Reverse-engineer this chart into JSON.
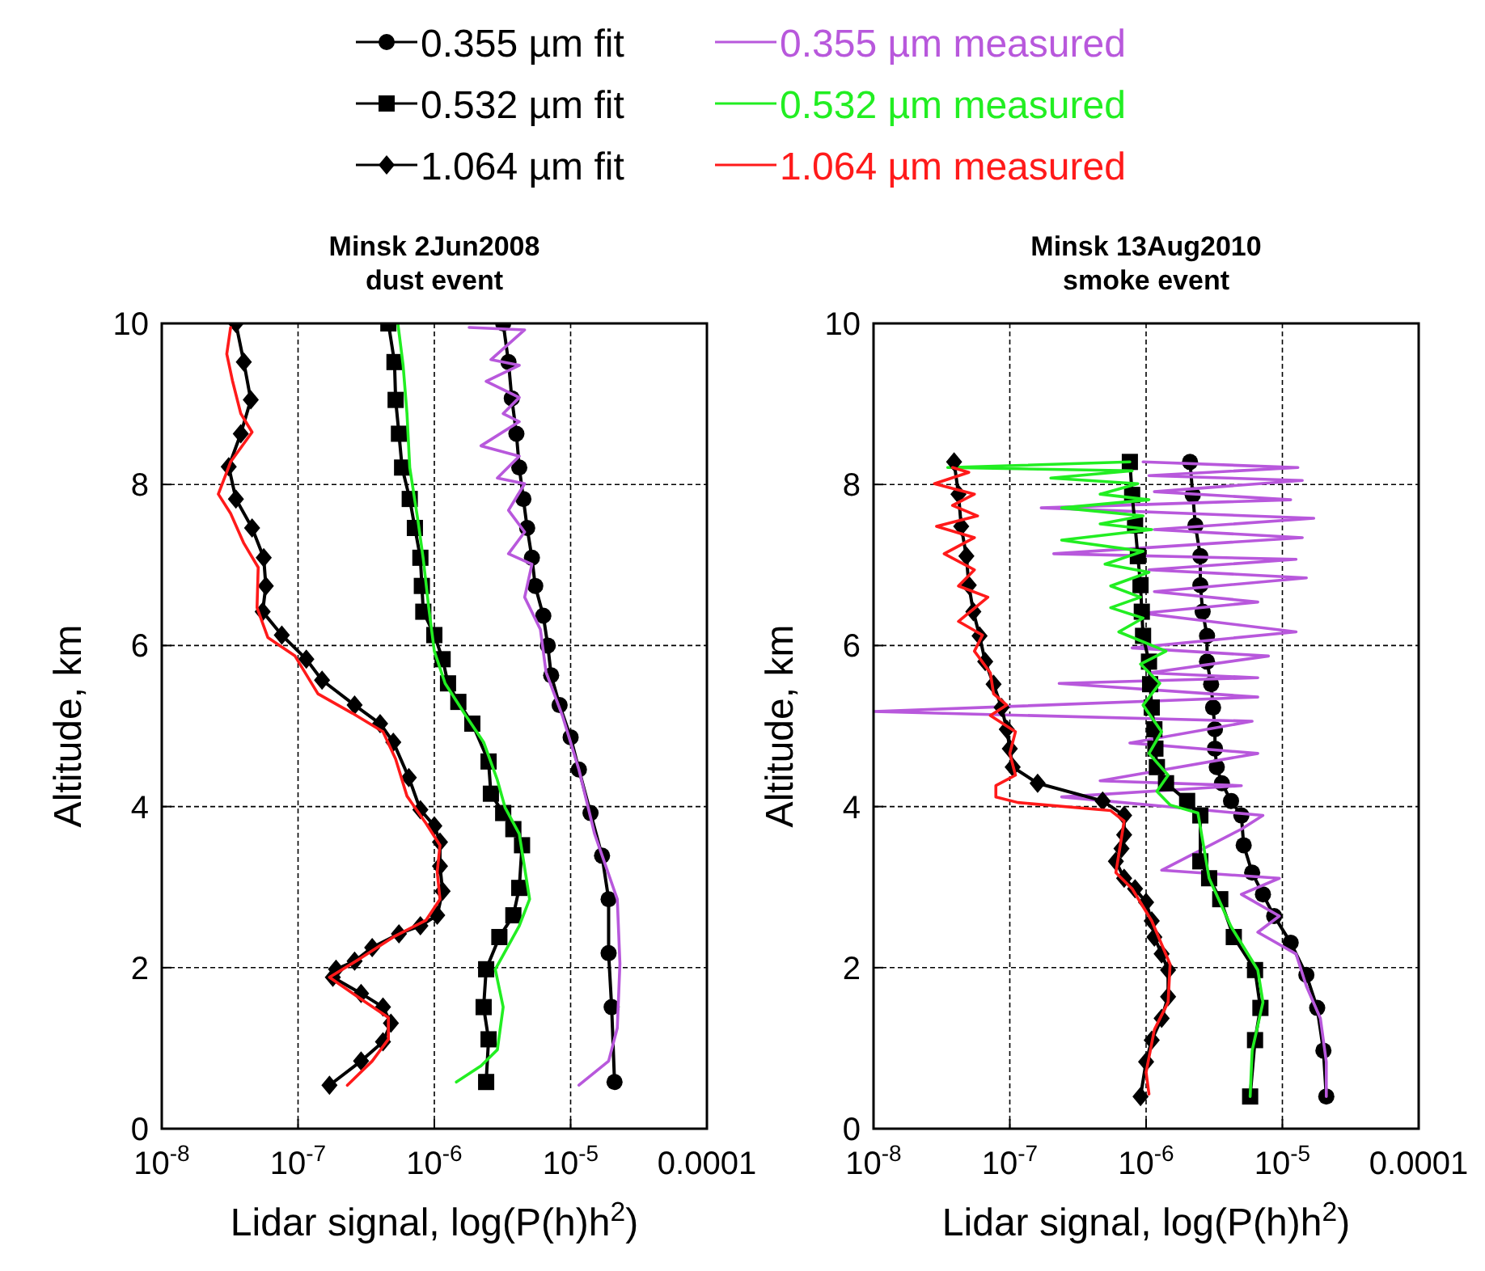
{
  "chart_data": [
    {
      "type": "line",
      "title": "Minsk 2Jun2008",
      "subtitle": "dust event",
      "xlabel": "Lidar signal, log(P(h)h$^{2}$)",
      "ylabel": "Altitude, km",
      "log": "x",
      "grid": true,
      "legend": "top",
      "line_style": "solid",
      "xlim": [
        1e-08,
        0.0001
      ],
      "xticks": [
        {
          "value": 1e-08,
          "label": "10$^{-8}$"
        },
        {
          "value": 1e-07,
          "label": "10$^{-7}$"
        },
        {
          "value": 1e-06,
          "label": "10$^{-6}$"
        },
        {
          "value": 1e-05,
          "label": "10$^{-5}$"
        },
        0.0001
      ],
      "ylim": [
        0,
        10
      ],
      "yticks": [
        0,
        2,
        4,
        6,
        8,
        10
      ],
      "series": [
        {
          "name": "0.355 µm fit",
          "color": "#000000",
          "marker": "circle",
          "x": [
            3.2e-06,
            3.5e-06,
            3.7e-06,
            4e-06,
            4.2e-06,
            4.5e-06,
            4.8e-06,
            5.2e-06,
            5.5e-06,
            6.3e-06,
            6.8e-06,
            7.2e-06,
            8.3e-06,
            1e-05,
            1.15e-05,
            1.4e-05,
            1.7e-05,
            1.9e-05,
            1.9e-05,
            2e-05,
            2.1e-05
          ],
          "values": [
            10,
            9.52,
            9.07,
            8.63,
            8.21,
            7.82,
            7.46,
            7.09,
            6.74,
            6.37,
            6.0,
            5.63,
            5.26,
            4.86,
            4.46,
            3.92,
            3.39,
            2.85,
            2.18,
            1.51,
            0.58
          ]
        },
        {
          "name": "0.355 µm measured",
          "color": "#b858dc",
          "marker": "none",
          "x": [
            1.8e-06,
            4.6e-06,
            2.6e-06,
            4.2e-06,
            2.4e-06,
            4.2e-06,
            3.2e-06,
            4.2e-06,
            2.2e-06,
            4.2e-06,
            2.9e-06,
            4.6e-06,
            3.5e-06,
            4.6e-06,
            3.5e-06,
            5.2e-06,
            4.6e-06,
            6e-06,
            6.6e-06,
            8.7e-06,
            1.15e-05,
            1.5e-05,
            2.2e-05,
            2.3e-05,
            2.2e-05,
            1.9e-05,
            1.15e-05
          ],
          "values": [
            9.95,
            9.92,
            9.55,
            9.48,
            9.28,
            9.08,
            8.88,
            8.78,
            8.48,
            8.35,
            8.08,
            8.01,
            7.68,
            7.41,
            7.14,
            7.01,
            6.6,
            6.2,
            5.67,
            5.13,
            4.46,
            3.66,
            2.85,
            2.05,
            1.25,
            0.84,
            0.54
          ]
        },
        {
          "name": "0.532 µm fit",
          "color": "#000000",
          "marker": "square",
          "x": [
            4.6e-07,
            5.1e-07,
            5.2e-07,
            5.5e-07,
            5.8e-07,
            6.6e-07,
            7.2e-07,
            7.9e-07,
            8.1e-07,
            8.3e-07,
            1e-06,
            1.15e-06,
            1.26e-06,
            1.5e-06,
            1.9e-06,
            2.5e-06,
            2.6e-06,
            3.2e-06,
            3.8e-06,
            4.4e-06,
            4.2e-06,
            3.8e-06,
            3e-06,
            2.4e-06,
            2.3e-06,
            2.5e-06,
            2.4e-06
          ],
          "values": [
            10,
            9.52,
            9.05,
            8.63,
            8.21,
            7.82,
            7.46,
            7.09,
            6.74,
            6.42,
            6.13,
            5.83,
            5.53,
            5.3,
            5.03,
            4.56,
            4.16,
            3.92,
            3.72,
            3.52,
            2.99,
            2.65,
            2.38,
            1.98,
            1.51,
            1.11,
            0.58
          ]
        },
        {
          "name": "0.532 µm measured",
          "color": "#22ee22",
          "marker": "none",
          "x": [
            5.4e-07,
            5.9e-07,
            6.3e-07,
            6.6e-07,
            7.6e-07,
            8.3e-07,
            9.1e-07,
            1e-06,
            1.2e-06,
            1.7e-06,
            2.3e-06,
            2.9e-06,
            3.3e-06,
            4.2e-06,
            5e-06,
            4.2e-06,
            2.8e-06,
            3.2e-06,
            2.9e-06,
            2.2e-06,
            1.45e-06
          ],
          "values": [
            10,
            9.48,
            8.88,
            8.21,
            7.54,
            7.07,
            6.47,
            5.93,
            5.53,
            5.13,
            4.8,
            4.33,
            3.99,
            3.66,
            2.85,
            2.52,
            1.98,
            1.51,
            0.98,
            0.78,
            0.58
          ]
        },
        {
          "name": "1.064 µm fit",
          "color": "#000000",
          "marker": "diamond",
          "x": [
            3.5e-08,
            4e-08,
            4.5e-08,
            3.8e-08,
            3.1e-08,
            3.5e-08,
            4.6e-08,
            5.6e-08,
            5.8e-08,
            5.5e-08,
            7.6e-08,
            1.15e-07,
            1.5e-07,
            2.6e-07,
            4e-07,
            5e-07,
            6.5e-07,
            7.9e-07,
            1e-06,
            1.1e-06,
            1.1e-06,
            1.15e-06,
            1.05e-06,
            7.9e-07,
            5.5e-07,
            3.5e-07,
            2.6e-07,
            1.9e-07,
            1.8e-07,
            2.9e-07,
            4.2e-07,
            4.8e-07,
            4.2e-07,
            2.9e-07,
            1.7e-07
          ],
          "values": [
            10,
            9.52,
            9.05,
            8.63,
            8.22,
            7.82,
            7.46,
            7.09,
            6.74,
            6.42,
            6.13,
            5.83,
            5.57,
            5.26,
            5.03,
            4.8,
            4.36,
            3.96,
            3.76,
            3.56,
            3.26,
            2.95,
            2.65,
            2.52,
            2.42,
            2.25,
            2.08,
            1.98,
            1.88,
            1.68,
            1.51,
            1.31,
            1.08,
            0.84,
            0.54
          ]
        },
        {
          "name": "1.064 µm measured",
          "color": "#ff1a1a",
          "marker": "none",
          "x": [
            3.2e-08,
            3e-08,
            3.3e-08,
            3.8e-08,
            4.6e-08,
            3.2e-08,
            2.6e-08,
            3.2e-08,
            4e-08,
            5.1e-08,
            5e-08,
            6e-08,
            9.5e-08,
            1.4e-07,
            2.5e-07,
            4.2e-07,
            5.2e-07,
            6.3e-07,
            8.7e-07,
            1.1e-06,
            1.05e-06,
            1.1e-06,
            8.7e-07,
            5e-07,
            2.9e-07,
            1.7e-07,
            2.9e-07,
            4.6e-07,
            4.6e-07,
            3.5e-07,
            2.3e-07
          ],
          "values": [
            9.95,
            9.62,
            9.29,
            8.88,
            8.65,
            8.28,
            7.88,
            7.64,
            7.27,
            6.97,
            6.47,
            6.1,
            5.87,
            5.4,
            5.16,
            4.93,
            4.59,
            4.13,
            3.79,
            3.52,
            3.19,
            2.85,
            2.59,
            2.38,
            2.12,
            1.88,
            1.61,
            1.38,
            1.11,
            0.84,
            0.54
          ]
        }
      ]
    },
    {
      "type": "line",
      "title": "Minsk 13Aug2010",
      "subtitle": "smoke event",
      "xlabel": "Lidar signal, log(P(h)h$^{2}$)",
      "ylabel": "Altitude, km",
      "log": "x",
      "grid": true,
      "line_style": "solid",
      "xlim": [
        1e-08,
        0.0001
      ],
      "xticks": [
        {
          "value": 1e-08,
          "label": "10$^{-8}$"
        },
        {
          "value": 1e-07,
          "label": "10$^{-7}$"
        },
        {
          "value": 1e-06,
          "label": "10$^{-6}$"
        },
        {
          "value": 1e-05,
          "label": "10$^{-5}$"
        },
        0.0001
      ],
      "ylim": [
        0,
        10
      ],
      "yticks": [
        0,
        2,
        4,
        6,
        8,
        10
      ],
      "series": [
        {
          "color": "#000000",
          "marker": "circle",
          "x": [
            2.1e-06,
            2.2e-06,
            2.3e-06,
            2.5e-06,
            2.5e-06,
            2.6e-06,
            2.8e-06,
            2.8e-06,
            3e-06,
            3.1e-06,
            3.2e-06,
            3.2e-06,
            3.3e-06,
            3.6e-06,
            4.2e-06,
            5e-06,
            5.2e-06,
            6e-06,
            7.2e-06,
            8.7e-06,
            1.15e-05,
            1.5e-05,
            1.8e-05,
            2e-05,
            2.1e-05
          ],
          "values": [
            8.28,
            7.87,
            7.49,
            7.11,
            6.75,
            6.42,
            6.12,
            5.8,
            5.52,
            5.23,
            4.96,
            4.72,
            4.49,
            4.29,
            4.07,
            3.89,
            3.52,
            3.18,
            2.91,
            2.64,
            2.31,
            1.91,
            1.5,
            0.97,
            0.4
          ]
        },
        {
          "color": "#b858dc",
          "marker": "none",
          "x": [
            9.5e-07,
            1.3e-05,
            1.05e-06,
            1.4e-05,
            1.15e-06,
            1.15e-05,
            1.7e-07,
            1.7e-05,
            1.15e-06,
            1.4e-05,
            2.1e-07,
            1.26e-05,
            1.05e-06,
            1.5e-05,
            1.15e-06,
            6.6e-06,
            9.5e-07,
            1.26e-05,
            7.9e-07,
            7.9e-06,
            1.05e-06,
            6.6e-06,
            2.3e-07,
            6.6e-06,
            1e-08,
            6e-06,
            7.6e-07,
            6.6e-06,
            4.6e-07,
            5e-06,
            2.4e-07,
            7.2e-06,
            5e-06,
            1.3e-06,
            9.5e-06,
            5e-06,
            9.5e-06,
            6.6e-06,
            1.26e-05,
            1.5e-05,
            1.9e-05,
            2.1e-05,
            2.1e-05
          ],
          "values": [
            8.28,
            8.21,
            8.11,
            8.05,
            7.91,
            7.81,
            7.71,
            7.58,
            7.44,
            7.34,
            7.14,
            7.07,
            6.94,
            6.84,
            6.67,
            6.54,
            6.4,
            6.17,
            5.97,
            5.87,
            5.66,
            5.6,
            5.53,
            5.36,
            5.18,
            5.06,
            4.79,
            4.66,
            4.32,
            4.26,
            4.12,
            3.89,
            3.72,
            3.21,
            3.11,
            2.91,
            2.64,
            2.44,
            2.17,
            1.77,
            1.37,
            0.83,
            0.4
          ]
        },
        {
          "color": "#000000",
          "marker": "square",
          "x": [
            7.6e-07,
            7.9e-07,
            8.3e-07,
            8.7e-07,
            9.1e-07,
            9.3e-07,
            9.5e-07,
            1.05e-06,
            1.07e-06,
            1.1e-06,
            1.15e-06,
            1.17e-06,
            1.2e-06,
            1.4e-06,
            2e-06,
            2.5e-06,
            2.5e-06,
            2.9e-06,
            3.5e-06,
            4.4e-06,
            6.3e-06,
            6.9e-06,
            6.3e-06,
            5.8e-06
          ],
          "values": [
            8.28,
            7.87,
            7.49,
            7.11,
            6.75,
            6.42,
            6.12,
            5.8,
            5.52,
            5.23,
            4.96,
            4.72,
            4.49,
            4.29,
            4.07,
            3.89,
            3.32,
            3.11,
            2.85,
            2.38,
            1.97,
            1.5,
            1.1,
            0.4
          ]
        },
        {
          "color": "#22ee22",
          "marker": "none",
          "x": [
            7.6e-07,
            3.5e-08,
            7.9e-07,
            2e-07,
            8.7e-07,
            4.6e-07,
            1.05e-06,
            2.4e-07,
            9.5e-07,
            4.6e-07,
            1.1e-06,
            2.4e-07,
            9.5e-07,
            5e-07,
            1.05e-06,
            5.5e-07,
            9.1e-07,
            5.5e-07,
            9.5e-07,
            6.3e-07,
            1.4e-06,
            9.1e-07,
            1.26e-06,
            9.5e-07,
            1.3e-06,
            1.05e-06,
            1.45e-06,
            1.2e-06,
            1.5e-06,
            2.4e-06,
            2.9e-06,
            4.2e-06,
            6.6e-06,
            7.2e-06,
            6e-06,
            5.8e-06
          ],
          "values": [
            8.28,
            8.21,
            8.17,
            8.08,
            8.01,
            7.88,
            7.81,
            7.71,
            7.61,
            7.51,
            7.44,
            7.31,
            7.17,
            7.01,
            6.91,
            6.74,
            6.6,
            6.47,
            6.34,
            6.17,
            5.93,
            5.77,
            5.53,
            5.26,
            4.93,
            4.66,
            4.39,
            4.19,
            4.02,
            3.92,
            3.11,
            2.51,
            1.97,
            1.57,
            0.97,
            0.4
          ]
        },
        {
          "color": "#000000",
          "marker": "diamond",
          "x": [
            3.9e-08,
            4.2e-08,
            4.4e-08,
            4.8e-08,
            5e-08,
            5.4e-08,
            6e-08,
            6.6e-08,
            7.6e-08,
            8.7e-08,
            9.5e-08,
            1e-07,
            1.05e-07,
            1.6e-07,
            4.8e-07,
            6.9e-07,
            6.9e-07,
            6.6e-07,
            6e-07,
            6.9e-07,
            8.3e-07,
            1e-06,
            1.1e-06,
            1.15e-06,
            1.3e-06,
            1.45e-06,
            1.45e-06,
            1.3e-06,
            1.1e-06,
            1e-06,
            9.1e-07
          ],
          "values": [
            8.28,
            7.88,
            7.48,
            7.11,
            6.75,
            6.42,
            6.12,
            5.8,
            5.52,
            5.23,
            4.96,
            4.72,
            4.49,
            4.29,
            4.07,
            3.89,
            3.65,
            3.48,
            3.32,
            3.11,
            2.98,
            2.81,
            2.58,
            2.38,
            2.17,
            1.97,
            1.64,
            1.37,
            1.1,
            0.83,
            0.4
          ]
        },
        {
          "color": "#ff1a1a",
          "marker": "none",
          "x": [
            3.8e-08,
            5e-08,
            2.8e-08,
            5.5e-08,
            3.8e-08,
            5.8e-08,
            2.9e-08,
            5.5e-08,
            3.3e-08,
            5.5e-08,
            4.2e-08,
            6.9e-08,
            4.2e-08,
            6.3e-08,
            5.5e-08,
            7.2e-08,
            7.6e-08,
            9.5e-08,
            7.2e-08,
            1.1e-07,
            1e-07,
            1.1e-07,
            7.9e-08,
            7.9e-08,
            1.15e-07,
            5.5e-07,
            6.9e-07,
            6e-07,
            7.9e-07,
            1.1e-06,
            1.5e-06,
            1.45e-06,
            1.15e-06,
            1e-06,
            1.05e-06
          ],
          "values": [
            8.21,
            8.15,
            8.01,
            7.88,
            7.74,
            7.61,
            7.48,
            7.34,
            7.14,
            6.94,
            6.74,
            6.6,
            6.3,
            6.13,
            5.93,
            5.66,
            5.4,
            5.26,
            5.13,
            4.93,
            4.66,
            4.39,
            4.26,
            4.12,
            4.05,
            3.95,
            3.82,
            3.18,
            2.98,
            2.58,
            2.04,
            1.57,
            1.23,
            0.7,
            0.43
          ]
        }
      ]
    }
  ]
}
